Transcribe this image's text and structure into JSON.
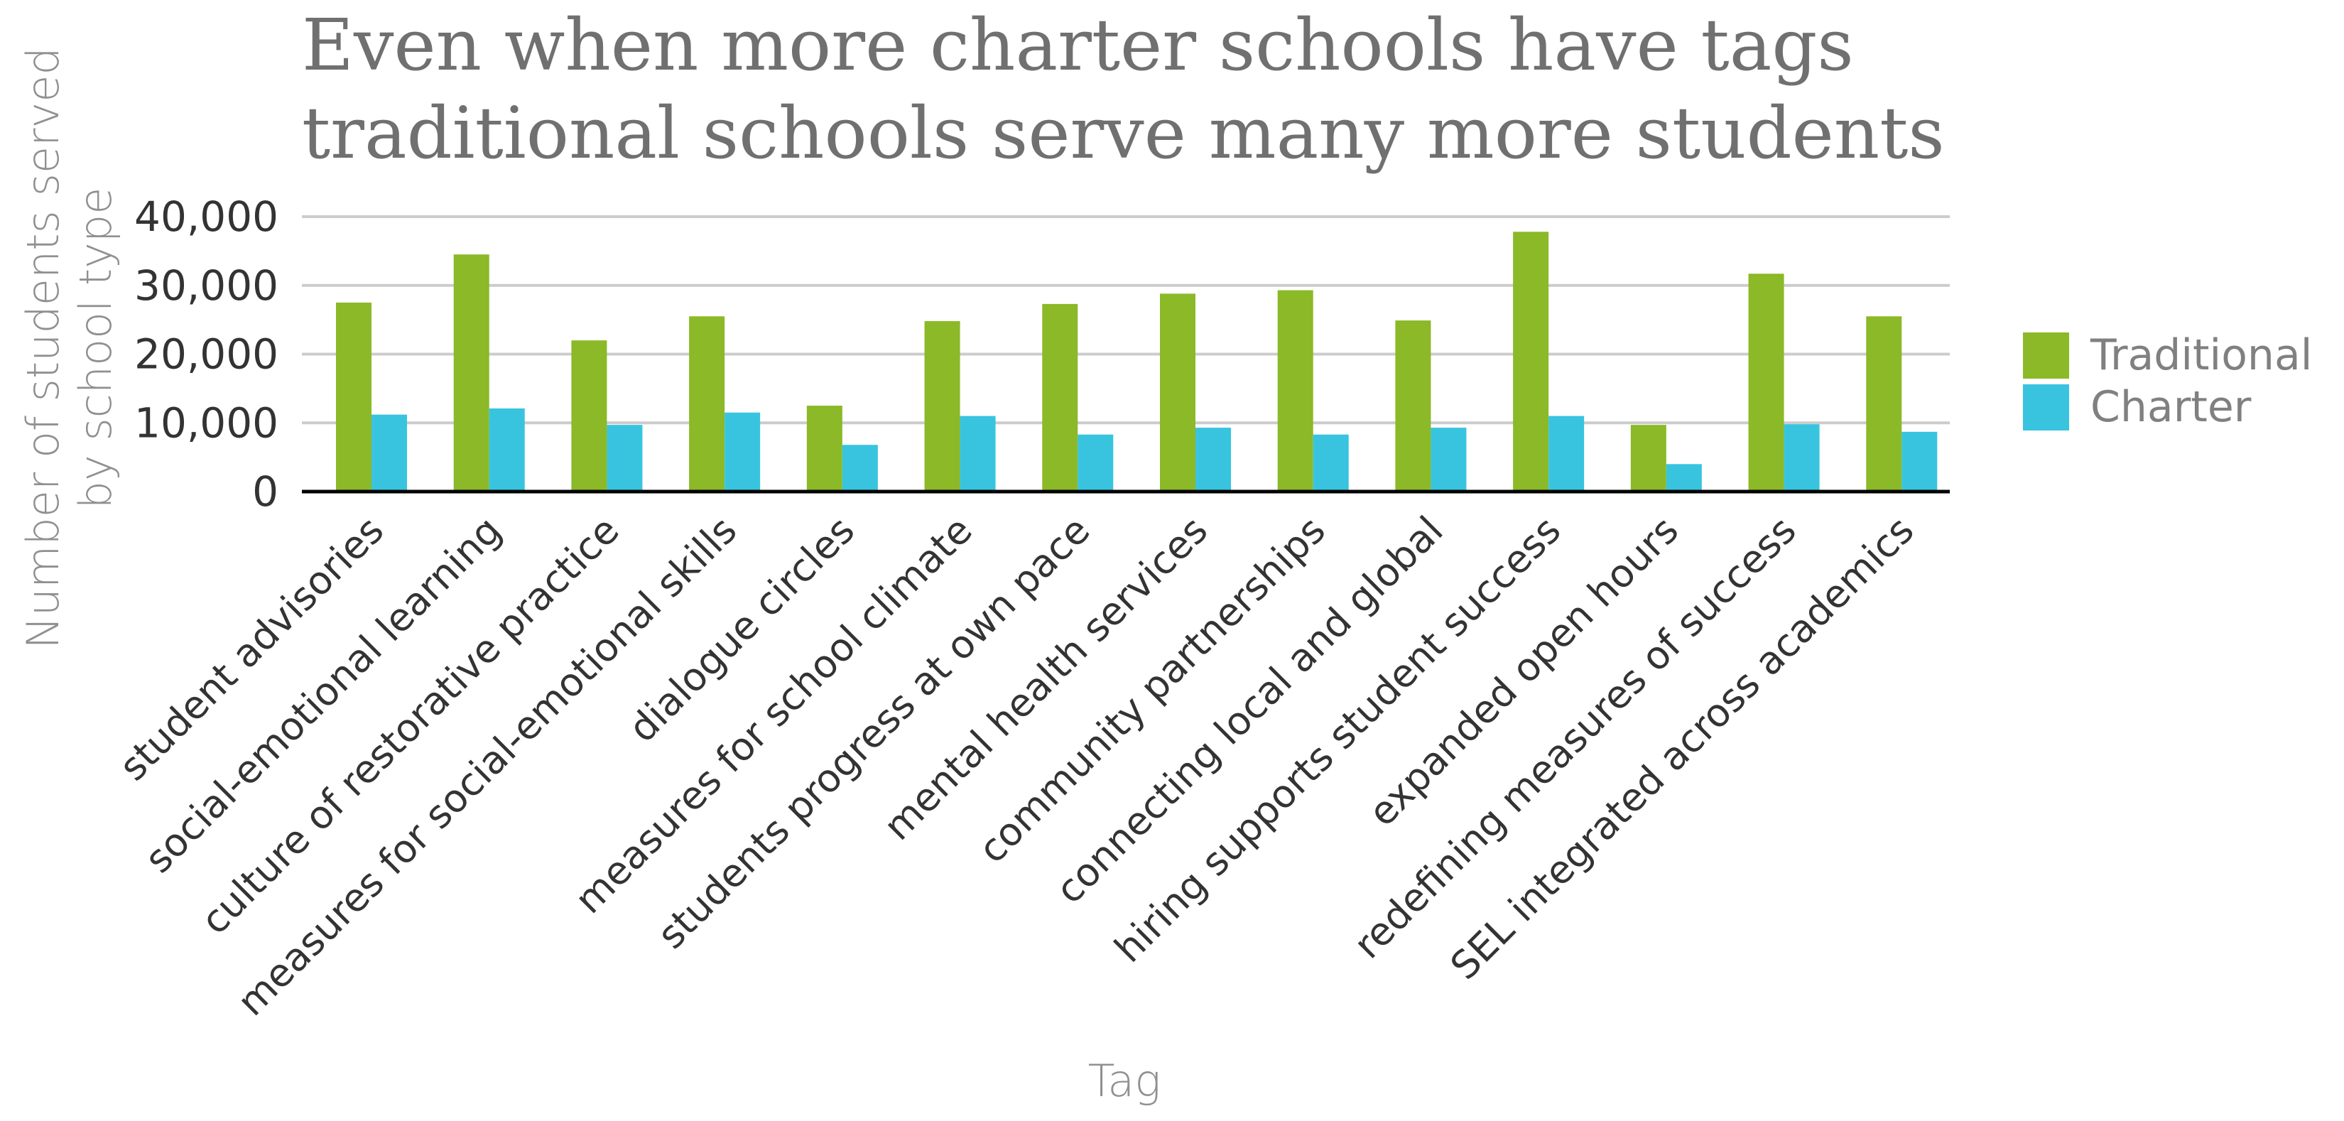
{
  "chart_data": {
    "type": "bar",
    "title_lines": [
      "Even when more charter schools have tags",
      "traditional schools serve many more students"
    ],
    "xlabel": "Tag",
    "ylabel_lines": [
      "Number of students served",
      "by school type"
    ],
    "ylim": [
      0,
      40000
    ],
    "yticks": [
      0,
      10000,
      20000,
      30000,
      40000
    ],
    "ytick_labels": [
      "0",
      "10,000",
      "20,000",
      "30,000",
      "40,000"
    ],
    "grid": true,
    "legend_position": "right",
    "categories": [
      "student advisories",
      "social-emotional learning",
      "culture of restorative practice",
      "measures for social-emotional skills",
      "dialogue circles",
      "measures for school climate",
      "students progress at own pace",
      "mental health services",
      "community partnerships",
      "connecting local and global",
      "hiring supports student success",
      "expanded open hours",
      "redefining measures of success",
      "SEL integrated across academics"
    ],
    "series": [
      {
        "name": "Traditional",
        "color": "#8bb927",
        "values": [
          27500,
          34500,
          22000,
          25500,
          12500,
          24800,
          27300,
          28800,
          29300,
          24900,
          37800,
          9700,
          31700,
          25500
        ]
      },
      {
        "name": "Charter",
        "color": "#38c4df",
        "values": [
          11200,
          12100,
          9700,
          11500,
          6800,
          11000,
          8300,
          9300,
          8300,
          9300,
          11000,
          4000,
          9800,
          8700
        ]
      }
    ]
  }
}
